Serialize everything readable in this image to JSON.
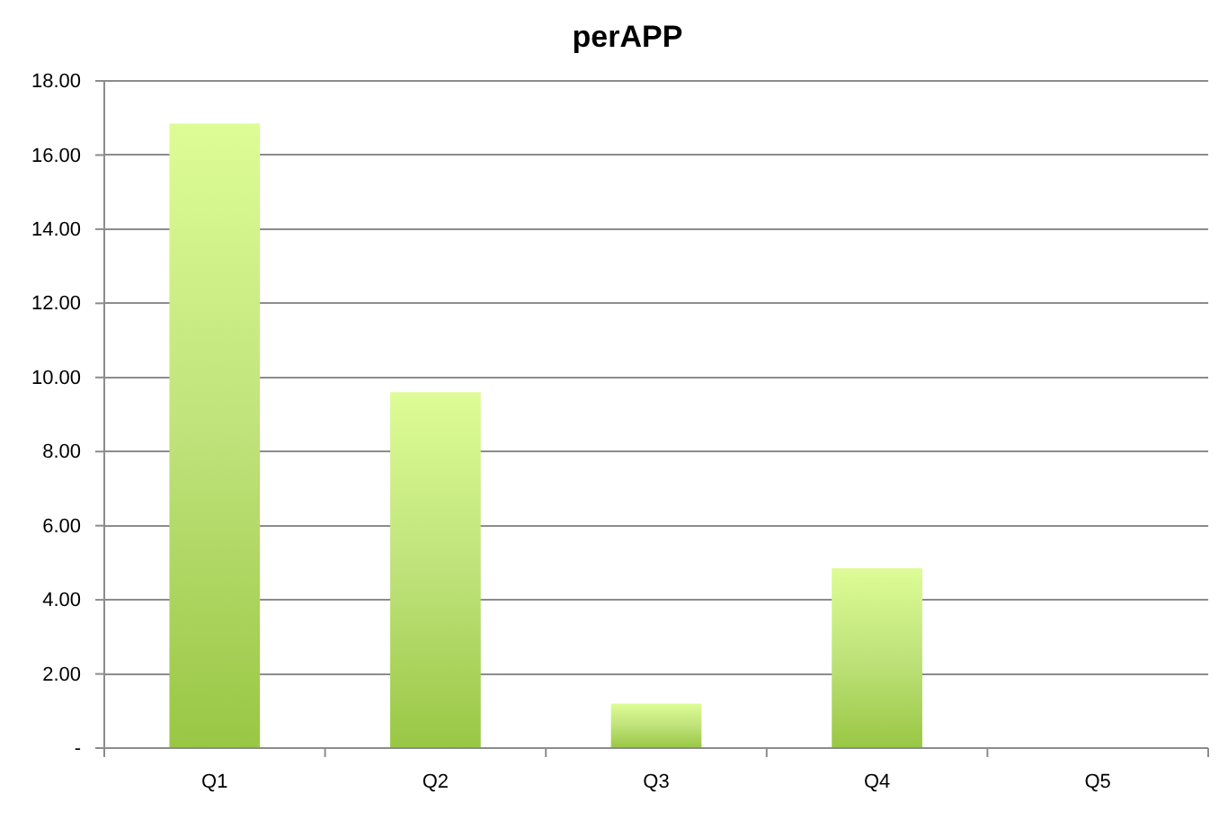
{
  "chart_data": {
    "type": "bar",
    "title": "perAPP",
    "categories": [
      "Q1",
      "Q2",
      "Q3",
      "Q4",
      "Q5"
    ],
    "values": [
      16.85,
      9.6,
      1.2,
      4.85,
      0
    ],
    "color": "#bfe27a",
    "ylim": [
      0,
      18
    ],
    "yticks": [
      {
        "value": 0,
        "label": "-"
      },
      {
        "value": 2,
        "label": "2.00"
      },
      {
        "value": 4,
        "label": "4.00"
      },
      {
        "value": 6,
        "label": "6.00"
      },
      {
        "value": 8,
        "label": "8.00"
      },
      {
        "value": 10,
        "label": "10.00"
      },
      {
        "value": 12,
        "label": "12.00"
      },
      {
        "value": 14,
        "label": "14.00"
      },
      {
        "value": 16,
        "label": "16.00"
      },
      {
        "value": 18,
        "label": "18.00"
      }
    ],
    "grid": "y"
  }
}
